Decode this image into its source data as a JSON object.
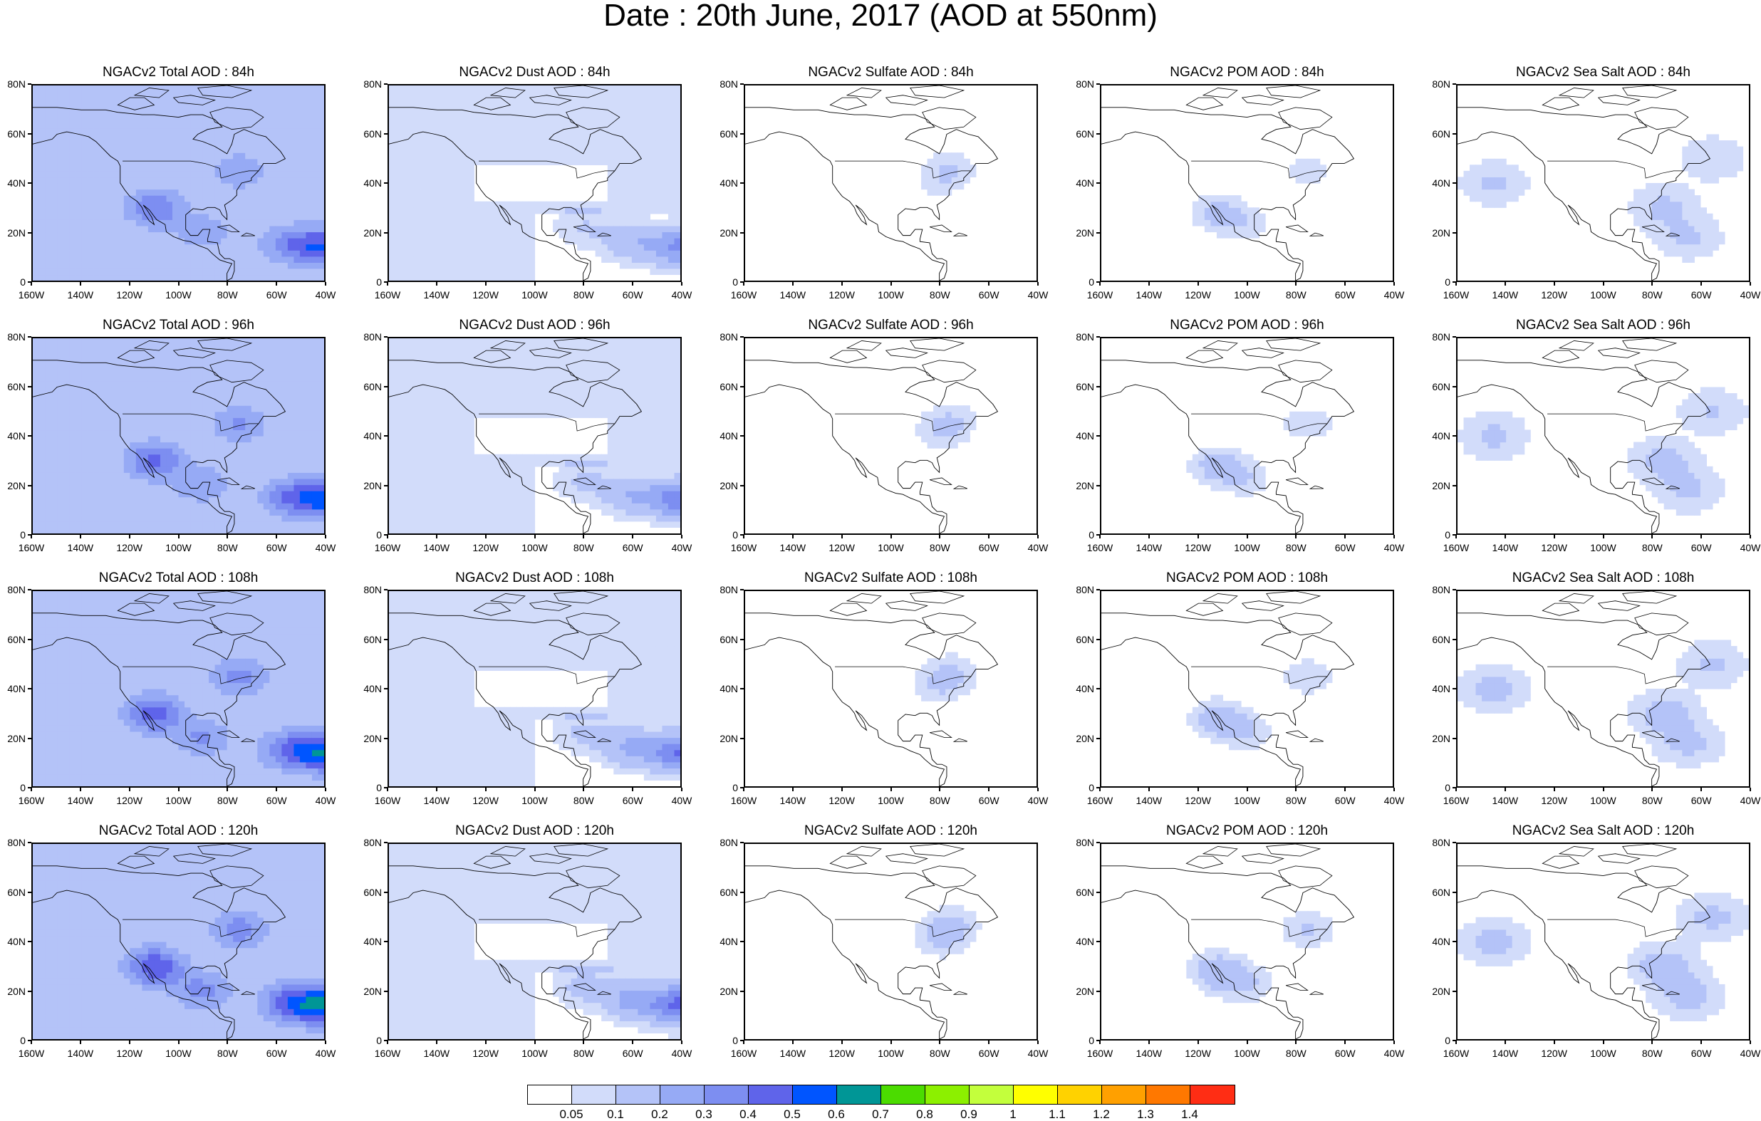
{
  "title": "Date : 20th June, 2017 (AOD at 550nm)",
  "panels": [
    [
      "NGACv2 Total AOD : 84h",
      "NGACv2 Dust AOD : 84h",
      "NGACv2 Sulfate AOD : 84h",
      "NGACv2 POM AOD : 84h",
      "NGACv2 Sea Salt AOD : 84h"
    ],
    [
      "NGACv2 Total AOD : 96h",
      "NGACv2 Dust AOD : 96h",
      "NGACv2 Sulfate AOD : 96h",
      "NGACv2 POM AOD : 96h",
      "NGACv2 Sea Salt AOD : 96h"
    ],
    [
      "NGACv2 Total AOD : 108h",
      "NGACv2 Dust AOD : 108h",
      "NGACv2 Sulfate AOD : 108h",
      "NGACv2 POM AOD : 108h",
      "NGACv2 Sea Salt AOD : 108h"
    ],
    [
      "NGACv2 Total AOD : 120h",
      "NGACv2 Dust AOD : 120h",
      "NGACv2 Sulfate AOD : 120h",
      "NGACv2 POM AOD : 120h",
      "NGACv2 Sea Salt  AOD : 120h"
    ]
  ],
  "panel_types": [
    "total",
    "dust",
    "sulfate",
    "pom",
    "seasalt"
  ],
  "lat_ticks": [
    "80N",
    "60N",
    "40N",
    "20N",
    "0"
  ],
  "lon_ticks": [
    "160W",
    "140W",
    "120W",
    "100W",
    "80W",
    "60W",
    "40W"
  ],
  "map_extent": {
    "lon_min": -160,
    "lon_max": -40,
    "lat_min": 0,
    "lat_max": 80
  },
  "colorbar": {
    "colors": [
      "#ffffff",
      "#d2dcfa",
      "#b4c3f8",
      "#96aaf5",
      "#7d8ef1",
      "#5f64ea",
      "#0055ff",
      "#009696",
      "#4bdc00",
      "#8cf000",
      "#c3ff3c",
      "#ffff00",
      "#ffd200",
      "#ffa000",
      "#ff7800",
      "#ff2d14"
    ],
    "labels": [
      "0.05",
      "0.1",
      "0.2",
      "0.3",
      "0.4",
      "0.5",
      "0.6",
      "0.7",
      "0.8",
      "0.9",
      "1",
      "1.1",
      "1.2",
      "1.3",
      "1.4"
    ]
  },
  "fields": {
    "total": [
      {
        "lon": -40,
        "lat": 14,
        "value": 0.35
      },
      {
        "lon": -55,
        "lat": 15,
        "value": 0.22
      },
      {
        "lon": -110,
        "lat": 30,
        "value": 0.28
      },
      {
        "lon": -75,
        "lat": 45,
        "value": 0.18
      },
      {
        "lon": -90,
        "lat": 20,
        "value": 0.16
      }
    ],
    "dust": [
      {
        "lon": -40,
        "lat": 14,
        "value": 0.3
      },
      {
        "lon": -60,
        "lat": 16,
        "value": 0.15
      },
      {
        "lon": -80,
        "lat": 22,
        "value": 0.08
      }
    ],
    "sulfate": [
      {
        "lon": -75,
        "lat": 47,
        "value": 0.08
      },
      {
        "lon": -80,
        "lat": 40,
        "value": 0.06
      }
    ],
    "pom": [
      {
        "lon": -112,
        "lat": 28,
        "value": 0.12
      },
      {
        "lon": -75,
        "lat": 45,
        "value": 0.08
      },
      {
        "lon": -100,
        "lat": 22,
        "value": 0.07
      }
    ],
    "seasalt": [
      {
        "lon": -145,
        "lat": 40,
        "value": 0.08
      },
      {
        "lon": -75,
        "lat": 30,
        "value": 0.09
      },
      {
        "lon": -65,
        "lat": 18,
        "value": 0.08
      },
      {
        "lon": -55,
        "lat": 50,
        "value": 0.07
      }
    ]
  }
}
